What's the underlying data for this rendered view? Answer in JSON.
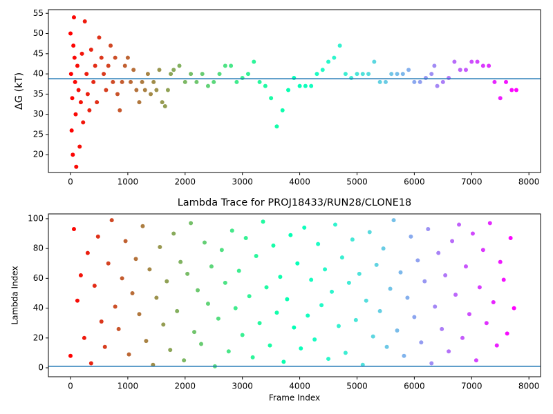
{
  "chart_data": [
    {
      "type": "scatter",
      "y_label": "ΔG (kT)",
      "colormap": "rainbow_r",
      "x": [
        0,
        10,
        20,
        30,
        40,
        50,
        60,
        70,
        80,
        90,
        100,
        120,
        140,
        160,
        180,
        200,
        220,
        250,
        280,
        300,
        330,
        360,
        400,
        430,
        460,
        500,
        540,
        580,
        620,
        660,
        700,
        740,
        780,
        820,
        860,
        900,
        950,
        1000,
        1050,
        1100,
        1150,
        1200,
        1250,
        1300,
        1350,
        1400,
        1450,
        1500,
        1550,
        1600,
        1650,
        1700,
        1750,
        1800,
        1900,
        2000,
        2100,
        2200,
        2300,
        2400,
        2500,
        2600,
        2700,
        2800,
        2900,
        3000,
        3100,
        3200,
        3300,
        3400,
        3500,
        3600,
        3700,
        3800,
        3900,
        4000,
        4100,
        4200,
        4300,
        4400,
        4500,
        4600,
        4700,
        4800,
        4900,
        5000,
        5100,
        5200,
        5300,
        5400,
        5500,
        5600,
        5700,
        5800,
        5900,
        6000,
        6100,
        6200,
        6300,
        6350,
        6400,
        6500,
        6600,
        6700,
        6800,
        6900,
        7000,
        7100,
        7200,
        7300,
        7400,
        7500,
        7600,
        7700,
        7780
      ],
      "values": [
        50,
        40,
        26,
        34,
        20,
        47,
        54,
        44,
        38,
        30,
        17,
        42,
        36,
        22,
        33,
        45,
        28,
        53,
        40,
        35,
        31,
        46,
        38,
        42,
        33,
        49,
        44,
        40,
        36,
        42,
        47,
        38,
        44,
        35,
        31,
        38,
        42,
        44,
        38,
        41,
        36,
        33,
        38,
        36,
        40,
        35,
        38,
        36,
        41,
        33,
        32,
        36,
        40,
        41,
        42,
        38,
        40,
        38,
        40,
        37,
        38,
        40,
        42,
        42,
        38,
        39,
        40,
        43,
        38,
        37,
        34,
        27,
        31,
        36,
        39,
        37,
        37,
        37,
        40,
        41,
        43,
        44,
        47,
        40,
        39,
        40,
        40,
        40,
        43,
        38,
        38,
        40,
        40,
        40,
        41,
        38,
        38,
        39,
        40,
        42,
        37,
        38,
        39,
        43,
        41,
        41,
        43,
        43,
        42,
        42,
        38,
        34,
        38,
        36,
        36
      ],
      "hline": 38.8,
      "hline_color": "#1f77b4",
      "xlim": [
        -386,
        8203
      ],
      "xticks": [
        0,
        1000,
        2000,
        3000,
        4000,
        5000,
        6000,
        7000,
        8000
      ],
      "ylim": [
        15.6,
        55.9
      ],
      "yticks": [
        20,
        25,
        30,
        35,
        40,
        45,
        50,
        55
      ]
    },
    {
      "type": "scatter",
      "title": "Lambda Trace for PROJ18433/RUN28/CLONE18",
      "x_label": "Frame Index",
      "y_label": "Lambda Index",
      "colormap": "rainbow_r",
      "x": [
        0,
        60,
        120,
        180,
        240,
        300,
        360,
        420,
        480,
        540,
        600,
        660,
        720,
        780,
        840,
        900,
        960,
        1020,
        1080,
        1140,
        1200,
        1260,
        1320,
        1380,
        1440,
        1500,
        1560,
        1620,
        1680,
        1740,
        1800,
        1860,
        1920,
        1980,
        2040,
        2100,
        2160,
        2220,
        2280,
        2340,
        2400,
        2460,
        2520,
        2580,
        2640,
        2700,
        2760,
        2820,
        2880,
        2940,
        3000,
        3060,
        3120,
        3180,
        3240,
        3300,
        3360,
        3420,
        3480,
        3540,
        3600,
        3660,
        3720,
        3780,
        3840,
        3900,
        3960,
        4020,
        4080,
        4140,
        4200,
        4260,
        4320,
        4380,
        4440,
        4500,
        4560,
        4620,
        4680,
        4740,
        4800,
        4860,
        4920,
        4980,
        5040,
        5100,
        5160,
        5220,
        5280,
        5340,
        5400,
        5460,
        5520,
        5580,
        5640,
        5700,
        5760,
        5820,
        5880,
        5940,
        6000,
        6060,
        6120,
        6180,
        6240,
        6300,
        6360,
        6420,
        6480,
        6540,
        6600,
        6660,
        6720,
        6780,
        6840,
        6900,
        6960,
        7020,
        7080,
        7140,
        7200,
        7260,
        7320,
        7380,
        7440,
        7500,
        7560,
        7620,
        7680,
        7740
      ],
      "values": [
        8,
        93,
        45,
        62,
        20,
        77,
        3,
        55,
        88,
        31,
        14,
        70,
        99,
        41,
        26,
        60,
        85,
        9,
        50,
        73,
        36,
        95,
        18,
        66,
        2,
        47,
        81,
        29,
        58,
        12,
        90,
        38,
        71,
        5,
        63,
        97,
        24,
        52,
        16,
        84,
        43,
        68,
        1,
        33,
        79,
        57,
        11,
        92,
        40,
        65,
        22,
        87,
        48,
        7,
        75,
        30,
        98,
        54,
        15,
        82,
        37,
        61,
        4,
        46,
        89,
        27,
        70,
        13,
        94,
        35,
        59,
        19,
        83,
        42,
        66,
        6,
        51,
        96,
        28,
        74,
        10,
        57,
        86,
        32,
        63,
        2,
        45,
        91,
        21,
        69,
        38,
        80,
        14,
        53,
        99,
        25,
        64,
        8,
        47,
        88,
        34,
        72,
        17,
        58,
        93,
        3,
        41,
        77,
        26,
        62,
        11,
        85,
        49,
        96,
        20,
        68,
        36,
        90,
        5,
        54,
        79,
        30,
        97,
        44,
        15,
        71,
        59,
        23,
        87,
        40
      ],
      "hline": 1,
      "hline_color": "#1f77b4",
      "xlim": [
        -386,
        8203
      ],
      "xticks": [
        0,
        1000,
        2000,
        3000,
        4000,
        5000,
        6000,
        7000,
        8000
      ],
      "ylim": [
        -6,
        103.2
      ],
      "yticks": [
        0,
        20,
        40,
        60,
        80,
        100
      ]
    }
  ]
}
